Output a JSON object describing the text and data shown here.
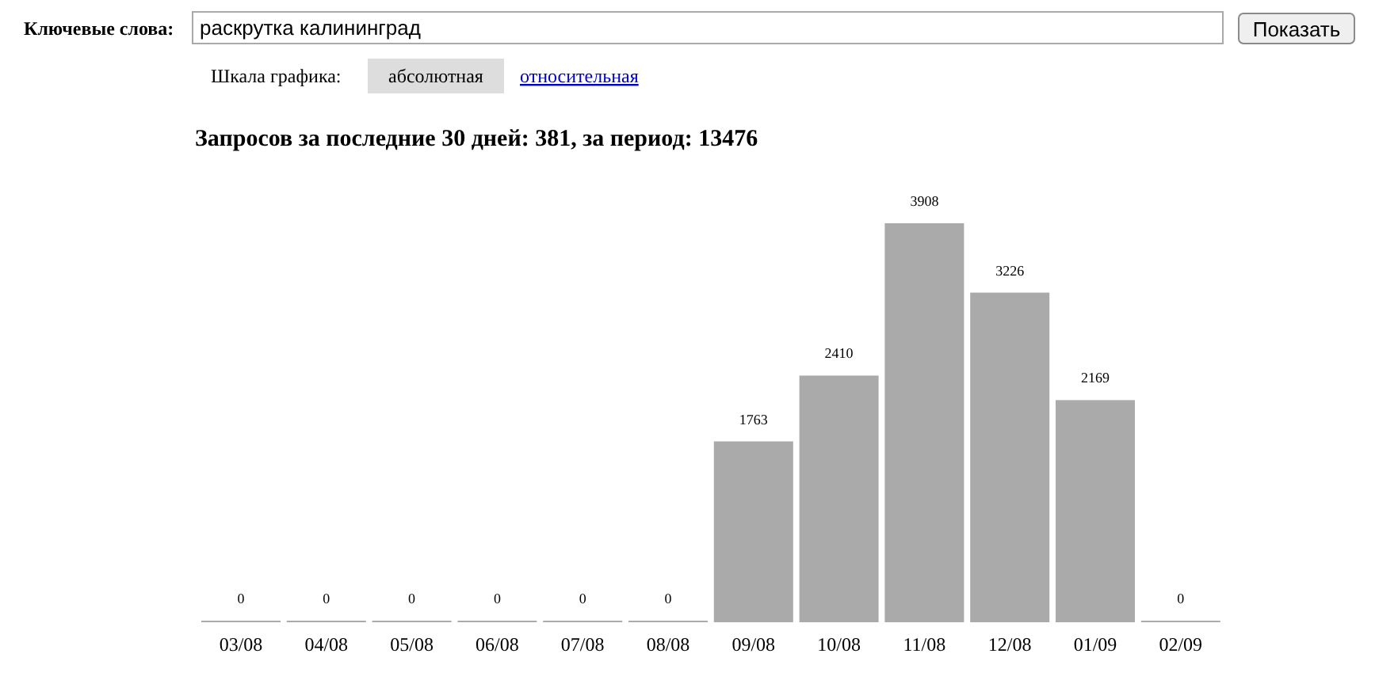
{
  "chart_data": {
    "type": "bar",
    "title": "Запросов за последние 30 дней: 381, за период: 13476",
    "categories": [
      "03/08",
      "04/08",
      "05/08",
      "06/08",
      "07/08",
      "08/08",
      "09/08",
      "10/08",
      "11/08",
      "12/08",
      "01/09",
      "02/09"
    ],
    "values": [
      0,
      0,
      0,
      0,
      0,
      0,
      1763,
      2410,
      3908,
      3226,
      2169,
      0
    ],
    "color": "#aaaaaa",
    "data_labels": true,
    "annotations": [
      "Ключевые слова:",
      "раскрутка калининград",
      "Показать",
      "Шкала графика:",
      "абсолютная",
      "относительная"
    ]
  }
}
